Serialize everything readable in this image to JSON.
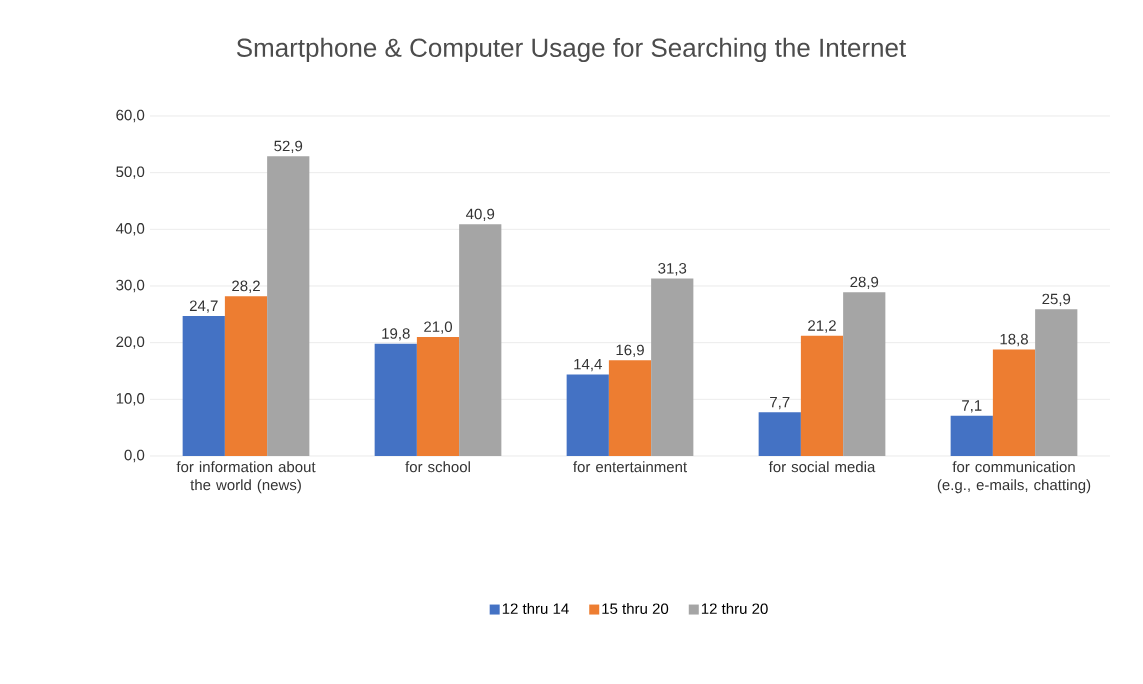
{
  "chart_data": {
    "type": "bar",
    "title": "Smartphone & Computer Usage for Searching the Internet",
    "categories": [
      "for information about the world (news)",
      "for school",
      "for entertainment",
      "for social media",
      "for communication (e.g., e-mails, chatting)"
    ],
    "series": [
      {
        "name": "12 thru 14",
        "color": "#4472c4",
        "values": [
          24.7,
          19.8,
          14.4,
          7.7,
          7.1
        ],
        "value_labels": [
          "24,7",
          "19,8",
          "14,4",
          "7,7",
          "7,1"
        ]
      },
      {
        "name": "15 thru 20",
        "color": "#ed7d31",
        "values": [
          28.2,
          21.0,
          16.9,
          21.2,
          18.8
        ],
        "value_labels": [
          "28,2",
          "21,0",
          "16,9",
          "21,2",
          "18,8"
        ]
      },
      {
        "name": "12 thru 20",
        "color": "#a5a5a5",
        "values": [
          52.9,
          40.9,
          31.3,
          28.9,
          25.9
        ],
        "value_labels": [
          "52,9",
          "40,9",
          "31,3",
          "28,9",
          "25,9"
        ]
      }
    ],
    "ylim": [
      0,
      60
    ],
    "yticks": [
      {
        "value": 0,
        "label": "0,0"
      },
      {
        "value": 10,
        "label": "10,0"
      },
      {
        "value": 20,
        "label": "20,0"
      },
      {
        "value": 30,
        "label": "30,0"
      },
      {
        "value": 40,
        "label": "40,0"
      },
      {
        "value": 50,
        "label": "50,0"
      },
      {
        "value": 60,
        "label": "60,0"
      }
    ],
    "grid": "y",
    "legend": "bottom"
  }
}
